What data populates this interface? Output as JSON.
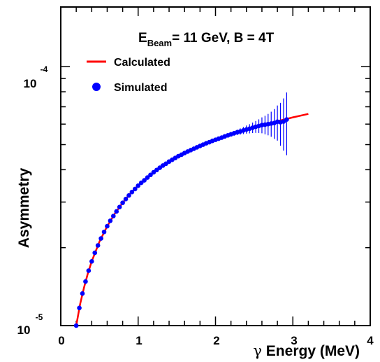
{
  "chart_data": {
    "type": "line",
    "title": "",
    "annotation": {
      "prefix": "E",
      "subscript": "Beam",
      "rest": "= 11 GeV, B = 4T"
    },
    "xlabel": {
      "symbol": "γ",
      "text": " Energy (MeV)"
    },
    "ylabel": "Asymmetry",
    "xlim": [
      0,
      4
    ],
    "ylim": [
      1e-05,
      0.00017
    ],
    "yscale": "log",
    "x_ticks": [
      "0",
      "1",
      "2",
      "3",
      "4"
    ],
    "y_ticks": [
      {
        "mantissa": "10",
        "exponent": "-5"
      },
      {
        "mantissa": "10",
        "exponent": "-4"
      }
    ],
    "grid": false,
    "legend_position": "top-left",
    "colors": {
      "calculated": "#ff0000",
      "simulated": "#0000ff"
    },
    "series": [
      {
        "name": "Calculated",
        "kind": "line",
        "x": [
          0.2,
          0.25,
          0.3,
          0.35,
          0.4,
          0.5,
          0.6,
          0.7,
          0.8,
          0.9,
          1.0,
          1.2,
          1.4,
          1.6,
          1.8,
          2.0,
          2.2,
          2.4,
          2.6,
          2.8,
          3.0,
          3.2
        ],
        "y": [
          1e-05,
          1.21e-05,
          1.4e-05,
          1.59e-05,
          1.77e-05,
          2.11e-05,
          2.42e-05,
          2.71e-05,
          2.98e-05,
          3.24e-05,
          3.47e-05,
          3.91e-05,
          4.3e-05,
          4.64e-05,
          4.94e-05,
          5.22e-05,
          5.48e-05,
          5.72e-05,
          5.95e-05,
          6.16e-05,
          6.37e-05,
          6.57e-05
        ]
      },
      {
        "name": "Simulated",
        "kind": "points",
        "x": [
          0.2,
          0.24,
          0.28,
          0.32,
          0.36,
          0.4,
          0.44,
          0.48,
          0.52,
          0.56,
          0.6,
          0.64,
          0.68,
          0.72,
          0.76,
          0.8,
          0.84,
          0.88,
          0.92,
          0.96,
          1.0,
          1.04,
          1.08,
          1.12,
          1.16,
          1.2,
          1.24,
          1.28,
          1.32,
          1.36,
          1.4,
          1.44,
          1.48,
          1.52,
          1.56,
          1.6,
          1.64,
          1.68,
          1.72,
          1.76,
          1.8,
          1.84,
          1.88,
          1.92,
          1.96,
          2.0,
          2.04,
          2.08,
          2.12,
          2.16,
          2.2,
          2.24,
          2.28,
          2.32,
          2.36,
          2.4,
          2.44,
          2.48,
          2.52,
          2.56,
          2.6,
          2.64,
          2.68,
          2.72,
          2.76,
          2.8,
          2.84,
          2.88,
          2.92
        ],
        "y": [
          1e-05,
          1.17e-05,
          1.33e-05,
          1.48e-05,
          1.63e-05,
          1.77e-05,
          1.91e-05,
          2.04e-05,
          2.17e-05,
          2.3e-05,
          2.42e-05,
          2.54e-05,
          2.65e-05,
          2.76e-05,
          2.87e-05,
          2.98e-05,
          3.08e-05,
          3.18e-05,
          3.28e-05,
          3.37e-05,
          3.47e-05,
          3.56e-05,
          3.64e-05,
          3.73e-05,
          3.82e-05,
          3.91e-05,
          3.99e-05,
          4.07e-05,
          4.15e-05,
          4.22e-05,
          4.3e-05,
          4.37e-05,
          4.44e-05,
          4.51e-05,
          4.57e-05,
          4.64e-05,
          4.7e-05,
          4.76e-05,
          4.82e-05,
          4.88e-05,
          4.94e-05,
          5e-05,
          5.06e-05,
          5.11e-05,
          5.17e-05,
          5.22e-05,
          5.27e-05,
          5.32e-05,
          5.38e-05,
          5.43e-05,
          5.48e-05,
          5.53e-05,
          5.58e-05,
          5.62e-05,
          5.67e-05,
          5.72e-05,
          5.76e-05,
          5.81e-05,
          5.86e-05,
          5.9e-05,
          5.95e-05,
          5.97e-05,
          6e-05,
          6.03e-05,
          6.06e-05,
          6.13e-05,
          6.1e-05,
          6.14e-05,
          6.25e-05
        ],
        "yerr": [
          0,
          0,
          0,
          0,
          0,
          0,
          0,
          0,
          0,
          0,
          0,
          0,
          0,
          0,
          0,
          0,
          0,
          0,
          0,
          0,
          0,
          0,
          0,
          0,
          0,
          0,
          0,
          0,
          0,
          0,
          0,
          0,
          0,
          0,
          0,
          0,
          1e-07,
          1.3e-07,
          1.6e-07,
          2e-07,
          2.4e-07,
          2.8e-07,
          3.3e-07,
          3.9e-07,
          4.5e-07,
          5.2e-07,
          6e-07,
          7e-07,
          8e-07,
          9.2e-07,
          1.05e-06,
          1.2e-06,
          1.37e-06,
          1.57e-06,
          1.8e-06,
          2.05e-06,
          2.35e-06,
          2.7e-06,
          3.1e-06,
          3.6e-06,
          4.2e-06,
          4.9e-06,
          5.7e-06,
          6.7e-06,
          8e-06,
          9.5e-06,
          1.15e-05,
          1.4e-05,
          1.7e-05
        ]
      }
    ]
  }
}
